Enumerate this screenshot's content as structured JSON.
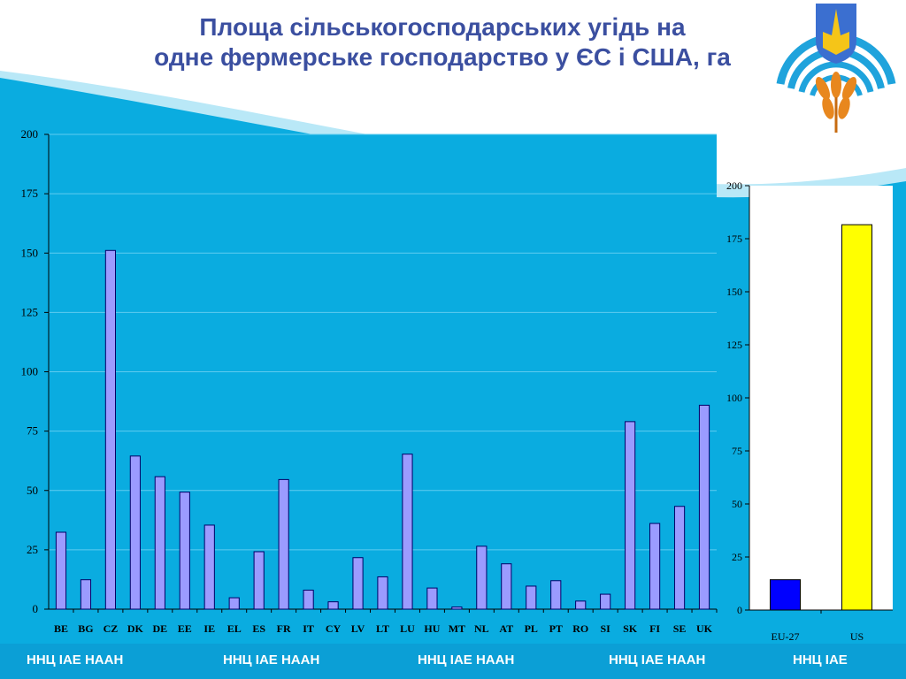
{
  "title": {
    "line1": "Площа сільськогосподарських угідь на",
    "line2": "одне фермерське господарство у ЄС і США, га"
  },
  "footer": {
    "items": [
      "ННЦ ІАЕ  НААН",
      "ННЦ ІАЕ  НААН",
      "ННЦ ІАЕ  НААН",
      "ННЦ ІАЕ  НААН",
      "ННЦ ІАЕ"
    ]
  },
  "colors": {
    "background": "#0aace0",
    "title": "#3b4fa0",
    "bar_countries": "#9b9bff",
    "bar_eu": "#0000ff",
    "bar_us": "#ffff00"
  },
  "logo": {
    "icon": "trident-wheat-logo-icon"
  },
  "chart_data": [
    {
      "type": "bar",
      "categories": [
        "BE",
        "BG",
        "CZ",
        "DK",
        "DE",
        "EE",
        "IE",
        "EL",
        "ES",
        "FR",
        "IT",
        "CY",
        "LV",
        "LT",
        "LU",
        "HU",
        "MT",
        "NL",
        "AT",
        "PL",
        "PT",
        "RO",
        "SI",
        "SK",
        "FI",
        "SE",
        "UK"
      ],
      "values": [
        32.4,
        12.4,
        151.1,
        64.5,
        55.8,
        49.3,
        35.4,
        4.8,
        24.2,
        54.6,
        8.0,
        3.1,
        21.7,
        13.6,
        65.3,
        8.9,
        0.9,
        26.5,
        19.1,
        9.7,
        12.0,
        3.4,
        6.3,
        79.0,
        36.1,
        43.3,
        85.9
      ],
      "ylim": [
        0,
        200
      ],
      "yticks": [
        0,
        25,
        50,
        75,
        100,
        125,
        150,
        175,
        200
      ],
      "grid": true,
      "legend": "none"
    },
    {
      "type": "bar",
      "categories": [
        "EU-27",
        "US"
      ],
      "values": [
        14.3,
        181.6
      ],
      "ylim": [
        0,
        200
      ],
      "yticks": [
        0,
        25,
        50,
        75,
        100,
        125,
        150,
        175,
        200
      ],
      "grid": false,
      "legend": "none"
    }
  ]
}
